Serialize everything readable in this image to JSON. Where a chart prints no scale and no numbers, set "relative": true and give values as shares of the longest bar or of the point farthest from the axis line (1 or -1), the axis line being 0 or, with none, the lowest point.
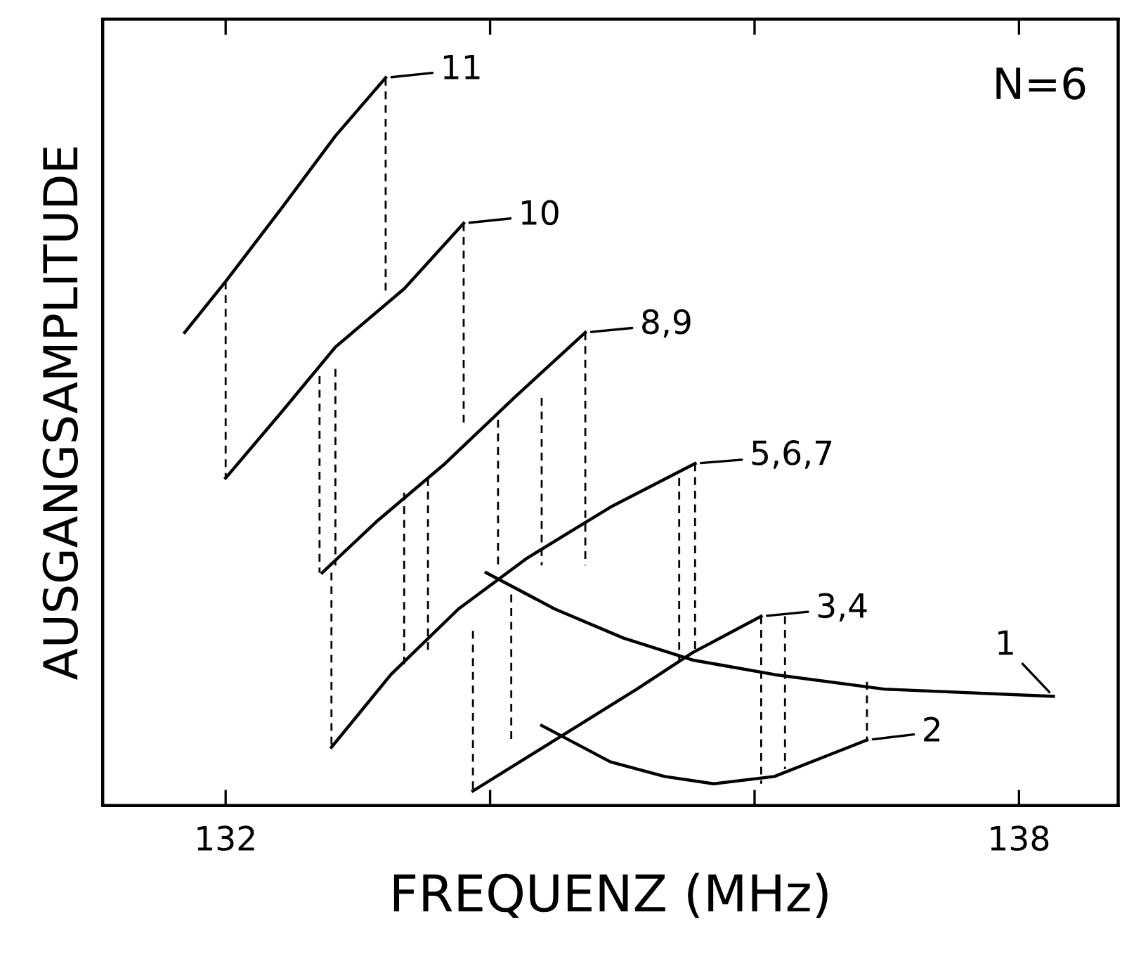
{
  "chart_data": {
    "type": "line",
    "relative": true,
    "xlabel": "FREQUENZ (MHz)",
    "ylabel": "AUSGANGSAMPLITUDE",
    "xlim": [
      131.07,
      138.75
    ],
    "xticks": [
      132,
      {
        "value": 134,
        "label": null
      },
      {
        "value": 136,
        "label": null
      },
      138
    ],
    "tick_labels": "x",
    "grid": false,
    "legend": "right",
    "marker": "none",
    "series": [
      {
        "name": "11",
        "color": "#000000",
        "line_style": "solid",
        "x": [
          131.69,
          132.0,
          132.42,
          132.83,
          133.21
        ],
        "values": [
          0.65,
          0.72,
          0.82,
          0.92,
          1.0
        ]
      },
      {
        "name": "10",
        "color": "#000000",
        "line_style": "solid",
        "x": [
          132.0,
          132.42,
          132.83,
          133.35,
          133.8
        ],
        "values": [
          0.45,
          0.54,
          0.63,
          0.71,
          0.8
        ]
      },
      {
        "name": "8,9",
        "color": "#000000",
        "line_style": "solid",
        "x": [
          132.73,
          133.14,
          133.66,
          134.18,
          134.72
        ],
        "values": [
          0.32,
          0.39,
          0.47,
          0.56,
          0.65
        ]
      },
      {
        "name": "5,6,7",
        "color": "#000000",
        "line_style": "solid",
        "x": [
          132.8,
          133.25,
          133.76,
          134.28,
          134.91,
          135.55
        ],
        "values": [
          0.08,
          0.18,
          0.27,
          0.34,
          0.41,
          0.47
        ]
      },
      {
        "name": "3,4",
        "color": "#000000",
        "line_style": "solid",
        "x": [
          133.87,
          134.49,
          135.11,
          135.53,
          136.05
        ],
        "values": [
          0.02,
          0.09,
          0.16,
          0.21,
          0.26
        ]
      },
      {
        "name": "1",
        "color": "#000000",
        "line_style": "solid",
        "x": [
          133.97,
          134.49,
          135.01,
          135.53,
          136.15,
          136.98,
          138.26
        ],
        "values": [
          0.32,
          0.27,
          0.23,
          0.2,
          0.18,
          0.16,
          0.15
        ]
      },
      {
        "name": "2",
        "color": "#000000",
        "line_style": "solid",
        "x": [
          134.39,
          134.91,
          135.32,
          135.69,
          136.15,
          136.57,
          136.85
        ],
        "values": [
          0.11,
          0.06,
          0.04,
          0.03,
          0.04,
          0.07,
          0.09
        ]
      },
      {
        "color": "#000000",
        "line_style": "dashed",
        "x": [
          132.0,
          132.0
        ],
        "values": [
          0.72,
          0.45
        ]
      },
      {
        "color": "#000000",
        "line_style": "dashed",
        "x": [
          133.21,
          133.21
        ],
        "values": [
          1.0,
          0.7
        ]
      },
      {
        "color": "#000000",
        "line_style": "dashed",
        "x": [
          132.71,
          132.71
        ],
        "values": [
          0.59,
          0.32
        ]
      },
      {
        "color": "#000000",
        "line_style": "dashed",
        "x": [
          132.83,
          132.83
        ],
        "values": [
          0.6,
          0.33
        ]
      },
      {
        "color": "#000000",
        "line_style": "dashed",
        "x": [
          132.8,
          132.8
        ],
        "values": [
          0.32,
          0.08
        ]
      },
      {
        "color": "#000000",
        "line_style": "dashed",
        "x": [
          133.8,
          133.8
        ],
        "values": [
          0.8,
          0.52
        ]
      },
      {
        "color": "#000000",
        "line_style": "dashed",
        "x": [
          133.35,
          133.35
        ],
        "values": [
          0.43,
          0.19
        ]
      },
      {
        "color": "#000000",
        "line_style": "dashed",
        "x": [
          133.53,
          133.53
        ],
        "values": [
          0.45,
          0.21
        ]
      },
      {
        "color": "#000000",
        "line_style": "dashed",
        "x": [
          134.06,
          134.06
        ],
        "values": [
          0.53,
          0.33
        ]
      },
      {
        "color": "#000000",
        "line_style": "dashed",
        "x": [
          134.39,
          134.39
        ],
        "values": [
          0.56,
          0.33
        ]
      },
      {
        "color": "#000000",
        "line_style": "dashed",
        "x": [
          134.72,
          134.72
        ],
        "values": [
          0.65,
          0.33
        ]
      },
      {
        "color": "#000000",
        "line_style": "dashed",
        "x": [
          133.87,
          133.87
        ],
        "values": [
          0.24,
          0.02
        ]
      },
      {
        "color": "#000000",
        "line_style": "dashed",
        "x": [
          134.16,
          134.16
        ],
        "values": [
          0.29,
          0.09
        ]
      },
      {
        "color": "#000000",
        "line_style": "dashed",
        "x": [
          135.43,
          135.43
        ],
        "values": [
          0.45,
          0.2
        ]
      },
      {
        "color": "#000000",
        "line_style": "dashed",
        "x": [
          135.55,
          135.55
        ],
        "values": [
          0.47,
          0.21
        ]
      },
      {
        "color": "#000000",
        "line_style": "dashed",
        "x": [
          136.05,
          136.05
        ],
        "values": [
          0.26,
          0.03
        ]
      },
      {
        "color": "#000000",
        "line_style": "dashed",
        "x": [
          136.23,
          136.23
        ],
        "values": [
          0.26,
          0.05
        ]
      },
      {
        "color": "#000000",
        "line_style": "dashed",
        "x": [
          136.85,
          136.85
        ],
        "values": [
          0.17,
          0.09
        ]
      }
    ],
    "annotations": [
      "N=6"
    ]
  }
}
